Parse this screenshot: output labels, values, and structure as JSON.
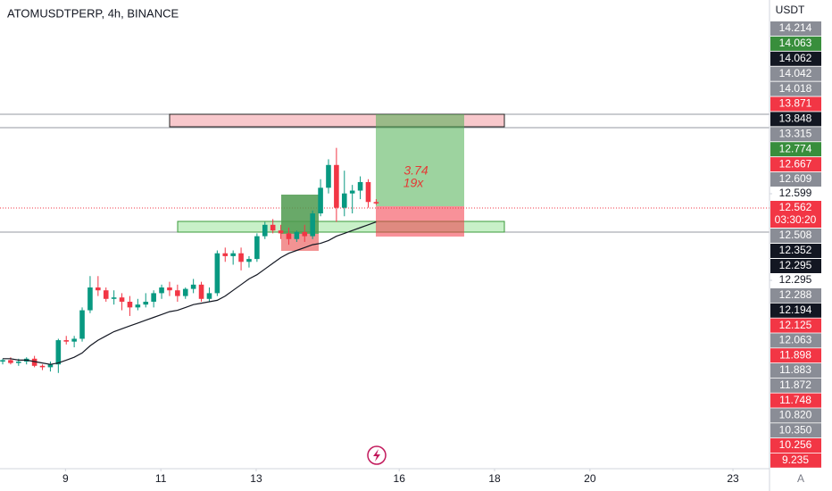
{
  "chart_data": {
    "type": "candlestick",
    "title": "ATOMUSDTPERP, 4h, BINANCE",
    "currency": "USDT",
    "scale_button": "A",
    "annotations": [
      "3.74",
      "19x"
    ],
    "ylim": [
      11.634,
      13.279
    ],
    "yticks": [
      12.599,
      12.295
    ],
    "xlim": [
      -0.34,
      96.5
    ],
    "xticks": [
      {
        "value": 7.9,
        "label": "9"
      },
      {
        "value": 19.9,
        "label": "11"
      },
      {
        "value": 31.9,
        "label": "13"
      },
      {
        "value": 49.9,
        "label": "16"
      },
      {
        "value": 61.9,
        "label": "18"
      },
      {
        "value": 73.9,
        "label": "20"
      },
      {
        "value": 91.9,
        "label": "23"
      }
    ],
    "up_color": "#089981",
    "down_color": "#f23645",
    "ma_color": "#131722",
    "candles": [
      [
        12.01,
        12.02,
        12.0,
        12.015
      ],
      [
        12.015,
        12.025,
        12.0,
        12.005
      ],
      [
        12.005,
        12.02,
        11.995,
        12.01
      ],
      [
        12.01,
        12.025,
        12.0,
        12.02
      ],
      [
        12.02,
        12.03,
        11.99,
        11.995
      ],
      [
        11.995,
        12.0,
        11.98,
        11.99
      ],
      [
        11.99,
        12.01,
        11.975,
        12.0
      ],
      [
        12.0,
        12.09,
        11.97,
        12.085
      ],
      [
        12.085,
        12.1,
        12.07,
        12.08
      ],
      [
        12.08,
        12.1,
        12.06,
        12.09
      ],
      [
        12.09,
        12.2,
        12.08,
        12.19
      ],
      [
        12.19,
        12.31,
        12.18,
        12.27
      ],
      [
        12.27,
        12.31,
        12.24,
        12.26
      ],
      [
        12.26,
        12.27,
        12.22,
        12.23
      ],
      [
        12.23,
        12.26,
        12.21,
        12.235
      ],
      [
        12.235,
        12.25,
        12.19,
        12.22
      ],
      [
        12.22,
        12.24,
        12.17,
        12.2
      ],
      [
        12.2,
        12.23,
        12.19,
        12.21
      ],
      [
        12.21,
        12.25,
        12.2,
        12.22
      ],
      [
        12.22,
        12.26,
        12.2,
        12.25
      ],
      [
        12.25,
        12.28,
        12.23,
        12.27
      ],
      [
        12.27,
        12.29,
        12.24,
        12.26
      ],
      [
        12.26,
        12.28,
        12.22,
        12.24
      ],
      [
        12.24,
        12.27,
        12.23,
        12.265
      ],
      [
        12.265,
        12.3,
        12.25,
        12.28
      ],
      [
        12.28,
        12.29,
        12.22,
        12.23
      ],
      [
        12.23,
        12.27,
        12.22,
        12.25
      ],
      [
        12.25,
        12.4,
        12.24,
        12.39
      ],
      [
        12.39,
        12.41,
        12.36,
        12.38
      ],
      [
        12.38,
        12.4,
        12.35,
        12.39
      ],
      [
        12.39,
        12.41,
        12.33,
        12.36
      ],
      [
        12.36,
        12.38,
        12.34,
        12.37
      ],
      [
        12.37,
        12.46,
        12.36,
        12.45
      ],
      [
        12.45,
        12.5,
        12.44,
        12.49
      ],
      [
        12.49,
        12.51,
        12.46,
        12.47
      ],
      [
        12.47,
        12.49,
        12.44,
        12.46
      ],
      [
        12.46,
        12.48,
        12.42,
        12.44
      ],
      [
        12.44,
        12.47,
        12.43,
        12.465
      ],
      [
        12.465,
        12.49,
        12.43,
        12.45
      ],
      [
        12.45,
        12.54,
        12.44,
        12.53
      ],
      [
        12.53,
        12.65,
        12.52,
        12.62
      ],
      [
        12.62,
        12.72,
        12.6,
        12.7
      ],
      [
        12.7,
        12.76,
        12.5,
        12.55
      ],
      [
        12.55,
        12.68,
        12.52,
        12.6
      ],
      [
        12.6,
        12.63,
        12.53,
        12.61
      ],
      [
        12.61,
        12.66,
        12.58,
        12.64
      ],
      [
        12.64,
        12.65,
        12.55,
        12.57
      ],
      [
        12.57,
        12.58,
        12.56,
        12.565
      ]
    ],
    "ma": [
      12.02,
      12.02,
      12.015,
      12.015,
      12.01,
      12.005,
      12.0,
      12.005,
      12.015,
      12.025,
      12.04,
      12.065,
      12.085,
      12.1,
      12.115,
      12.125,
      12.135,
      12.145,
      12.155,
      12.165,
      12.175,
      12.185,
      12.19,
      12.2,
      12.21,
      12.215,
      12.22,
      12.225,
      12.24,
      12.26,
      12.28,
      12.3,
      12.315,
      12.335,
      12.355,
      12.375,
      12.39,
      12.4,
      12.41,
      12.42,
      12.425,
      12.435,
      12.45,
      12.46,
      12.47,
      12.48,
      12.49,
      12.5
    ],
    "price_tags": [
      {
        "label": "14.214",
        "color": "#8a8d96"
      },
      {
        "label": "14.063",
        "color": "#388e3c"
      },
      {
        "label": "14.062",
        "color": "#131722"
      },
      {
        "label": "14.042",
        "color": "#8a8d96"
      },
      {
        "label": "14.018",
        "color": "#8a8d96"
      },
      {
        "label": "13.871",
        "color": "#f23645"
      },
      {
        "label": "13.848",
        "color": "#131722"
      },
      {
        "label": "13.315",
        "color": "#8a8d96"
      },
      {
        "label": "12.774",
        "color": "#388e3c"
      },
      {
        "label": "12.667",
        "color": "#f23645"
      },
      {
        "label": "12.609",
        "color": "#8a8d96"
      },
      {
        "label": "12.562",
        "color": "#f23645"
      },
      {
        "label": "12.508",
        "color": "#8a8d96"
      },
      {
        "label": "12.352",
        "color": "#131722"
      },
      {
        "label": "12.295",
        "color": "#131722"
      },
      {
        "label": "12.288",
        "color": "#8a8d96"
      },
      {
        "label": "12.194",
        "color": "#131722"
      },
      {
        "label": "12.125",
        "color": "#f23645"
      },
      {
        "label": "12.063",
        "color": "#8a8d96"
      },
      {
        "label": "11.898",
        "color": "#f23645"
      },
      {
        "label": "11.883",
        "color": "#8a8d96"
      },
      {
        "label": "11.872",
        "color": "#8a8d96"
      },
      {
        "label": "11.748",
        "color": "#f23645"
      },
      {
        "label": "10.820",
        "color": "#8a8d96"
      },
      {
        "label": "10.350",
        "color": "#8a8d96"
      },
      {
        "label": "10.256",
        "color": "#f23645"
      },
      {
        "label": "9.235",
        "color": "#f23645"
      }
    ],
    "countdown": "03:30:20"
  }
}
